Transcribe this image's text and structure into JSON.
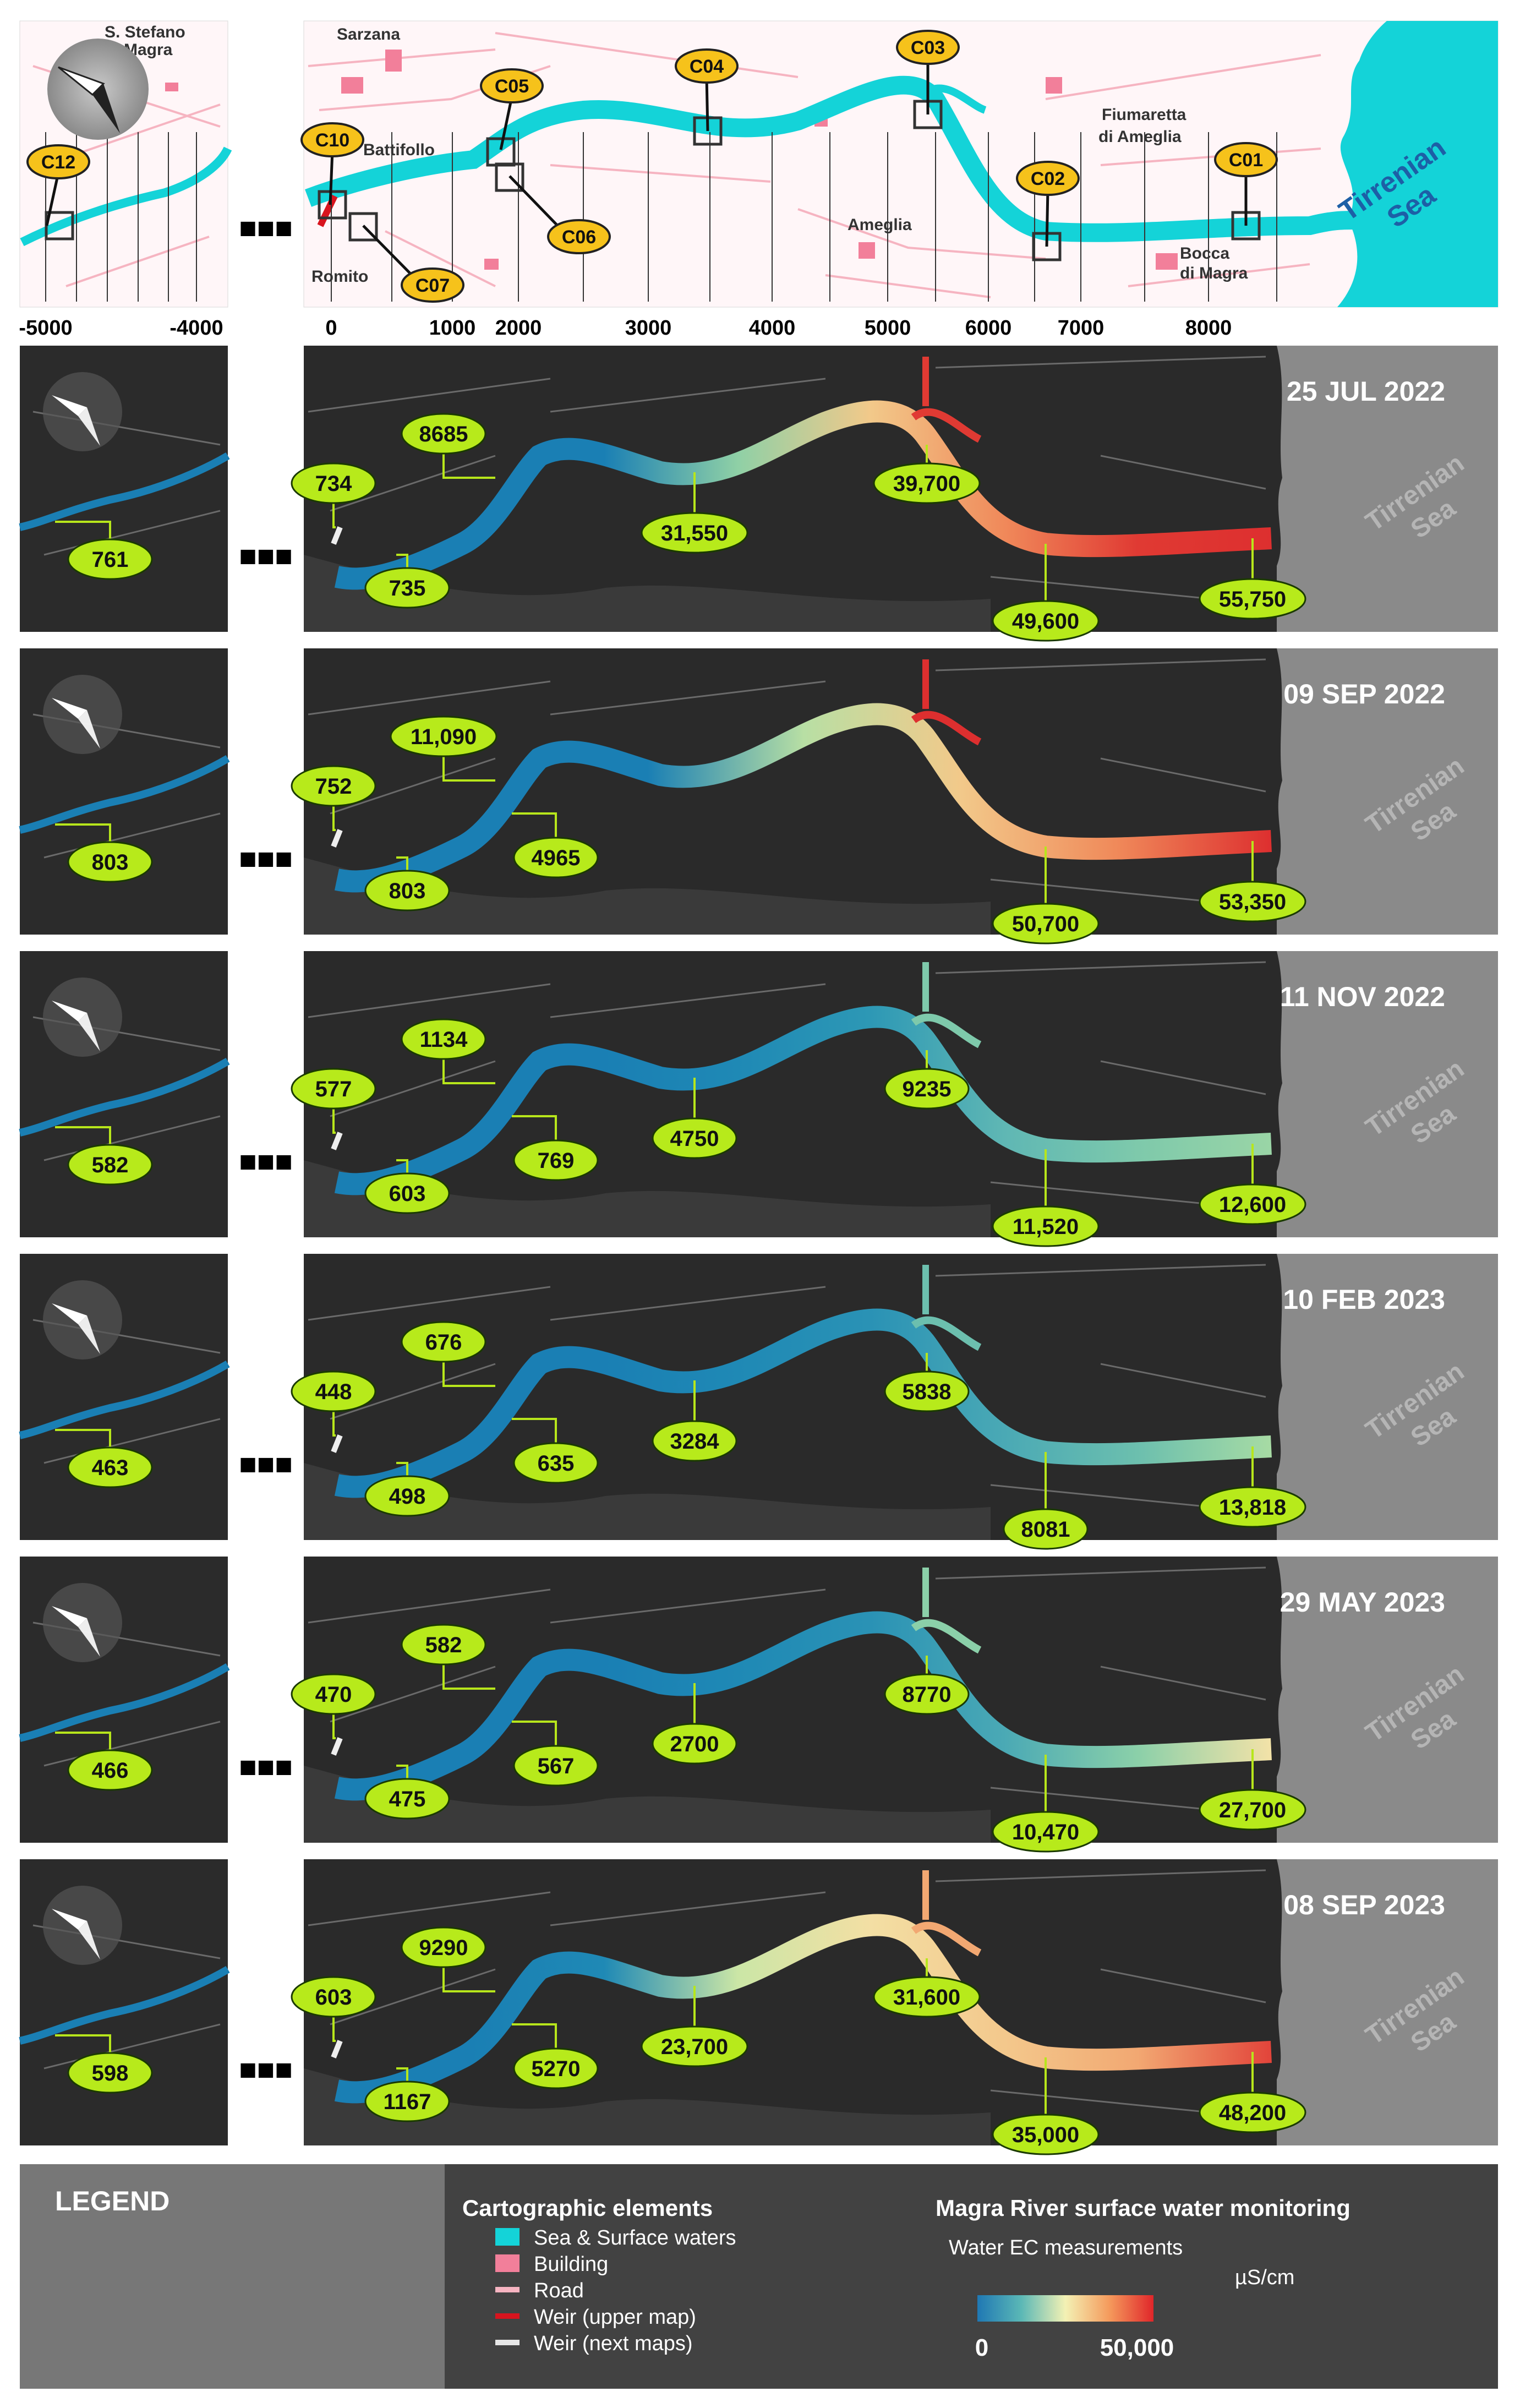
{
  "top_map": {
    "place_labels": [
      "S. Stefano",
      "di Magra",
      "Sarzana",
      "Battifollo",
      "Romito",
      "Ameglia",
      "Fiumaretta",
      "di Ameglia",
      "Bocca",
      "di Magra"
    ],
    "sea_label": [
      "Tirrenian",
      "Sea"
    ],
    "stations": [
      "C12",
      "C10",
      "C07",
      "C05",
      "C06",
      "C04",
      "C03",
      "C02",
      "C01"
    ],
    "axis_ticks_left": [
      "-5000",
      "-4000"
    ],
    "axis_ticks_right": [
      "0",
      "1000",
      "2000",
      "3000",
      "4000",
      "5000",
      "6000",
      "7000",
      "8000"
    ],
    "ellipsis": "■■■"
  },
  "sea_label_dark": [
    "Tirrenian",
    "Sea"
  ],
  "surveys": [
    {
      "date": "25 JUL 2022",
      "values": [
        "761",
        "734",
        "735",
        "8685",
        "31,550",
        "39,700",
        "49,600",
        "55,750"
      ],
      "colors": [
        "#1a7fb4",
        "#1a7fb4",
        "#1a7fb4",
        "#8fd0a6",
        "#f2c98a",
        "#f0895a",
        "#e03a33",
        "#dd2f2f"
      ]
    },
    {
      "date": "09 SEP 2022",
      "values": [
        "803",
        "752",
        "803",
        "11,090",
        "4965",
        "50,700",
        "53,350"
      ],
      "colors": [
        "#1a7fb4",
        "#1a7fb4",
        "#1a7fb4",
        "#b8dfa4",
        "#f2c98a",
        "#f08a5a",
        "#dd2f2f"
      ]
    },
    {
      "date": "11 NOV 2022",
      "values": [
        "582",
        "577",
        "603",
        "1134",
        "769",
        "4750",
        "9235",
        "11,520",
        "12,600"
      ],
      "colors": [
        "#1a7fb4",
        "#1a7fb4",
        "#1a7fb4",
        "#1f89b5",
        "#2d98b5",
        "#5fb7b4",
        "#7ec9ab",
        "#9ad5a6"
      ]
    },
    {
      "date": "10 FEB 2023",
      "values": [
        "463",
        "448",
        "498",
        "676",
        "635",
        "3284",
        "5838",
        "8081",
        "13,818"
      ],
      "colors": [
        "#1a7fb4",
        "#1a7fb4",
        "#1a7fb4",
        "#1f89b5",
        "#2a92b5",
        "#4aa9b5",
        "#6cbfae",
        "#a7dba4"
      ]
    },
    {
      "date": "29 MAY 2023",
      "values": [
        "466",
        "470",
        "475",
        "582",
        "567",
        "2700",
        "8770",
        "10,470",
        "27,700"
      ],
      "colors": [
        "#1a7fb4",
        "#1a7fb4",
        "#1a7fb4",
        "#1f89b5",
        "#2a92b5",
        "#4aa9b5",
        "#8bd0a9",
        "#f3e2a8"
      ]
    },
    {
      "date": "08 SEP 2023",
      "values": [
        "598",
        "603",
        "1167",
        "9290",
        "5270",
        "23,700",
        "31,600",
        "35,000",
        "48,200"
      ],
      "colors": [
        "#1a7fb4",
        "#1a7fb4",
        "#1f89b5",
        "#cbe6a6",
        "#f3dfa4",
        "#f3c88c",
        "#f2a872",
        "#e2443a"
      ]
    }
  ],
  "legend": {
    "title": "LEGEND",
    "carto_title": "Cartographic elements",
    "items": [
      {
        "label": "Sea & Surface waters",
        "color": "#14d3d8"
      },
      {
        "label": "Building",
        "color": "#f27f9a"
      },
      {
        "label": "Road",
        "color": "#f6b4c1"
      },
      {
        "label": "Weir (upper map)",
        "color": "#d8141e"
      },
      {
        "label": "Weir (next maps)",
        "color": "#e6e6e6"
      }
    ],
    "monitor_title": "Magra River surface water monitoring",
    "ec_label": "Water EC measurements",
    "unit": "µS/cm",
    "min": "0",
    "max": "50,000"
  }
}
